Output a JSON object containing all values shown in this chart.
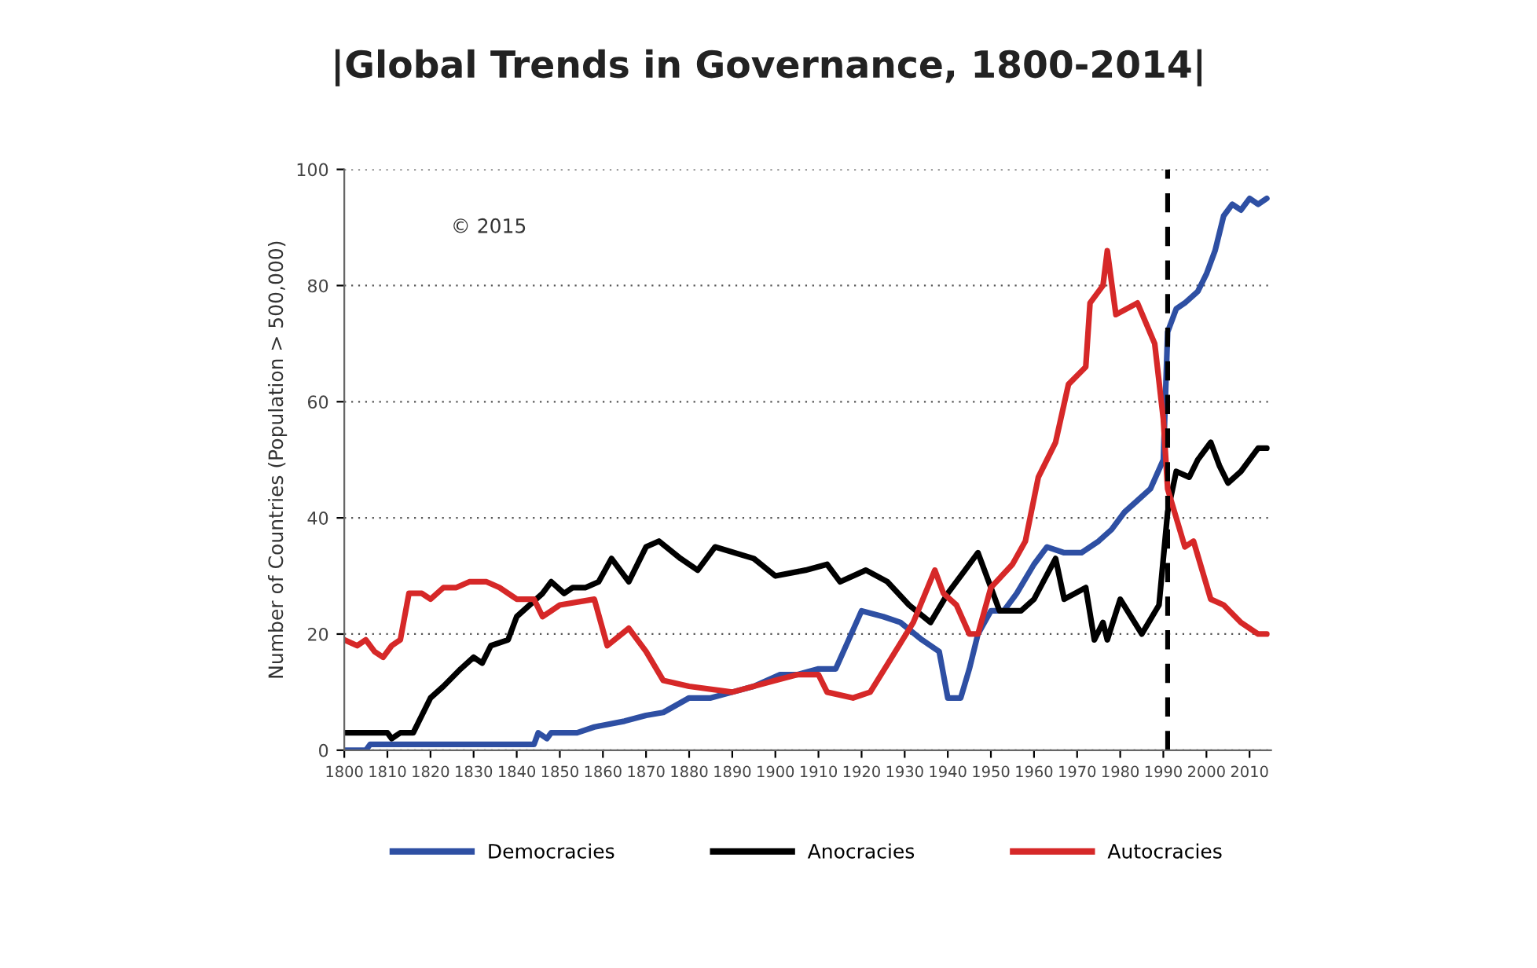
{
  "chart_data": {
    "type": "line",
    "title": "|Global Trends in Governance, 1800-2014|",
    "ylabel": "Number of Countries (Population > 500,000)",
    "annotations": [
      "© 2015"
    ],
    "xlim": [
      1800,
      2015
    ],
    "ylim": [
      0,
      100
    ],
    "xticks": [
      1800,
      1810,
      1820,
      1830,
      1840,
      1850,
      1860,
      1870,
      1880,
      1890,
      1900,
      1910,
      1920,
      1930,
      1940,
      1950,
      1960,
      1970,
      1980,
      1990,
      2000,
      2010
    ],
    "yticks": [
      0,
      20,
      40,
      60,
      80,
      100
    ],
    "grid": "y",
    "legend": "bottom",
    "line_style": "solid",
    "ref_lines": [
      {
        "axis": "x",
        "value": 1991,
        "color": "#000000",
        "line_style": "dashed"
      }
    ],
    "series": [
      {
        "name": "Democracies",
        "color": "#2e4fa3",
        "x": [
          1800,
          1805,
          1806,
          1844,
          1845,
          1847,
          1848,
          1854,
          1858,
          1865,
          1870,
          1874,
          1880,
          1885,
          1890,
          1895,
          1901,
          1905,
          1910,
          1914,
          1917,
          1920,
          1925,
          1929,
          1934,
          1938,
          1940,
          1943,
          1945,
          1947,
          1950,
          1953,
          1956,
          1960,
          1963,
          1967,
          1971,
          1975,
          1978,
          1981,
          1984,
          1987,
          1990,
          1991,
          1993,
          1995,
          1998,
          2000,
          2002,
          2004,
          2006,
          2008,
          2010,
          2012,
          2014
        ],
        "values": [
          0,
          0,
          1,
          1,
          3,
          2,
          3,
          3,
          4,
          5,
          6,
          6.5,
          9,
          9,
          10,
          11,
          13,
          13,
          14,
          14,
          19,
          24,
          23,
          22,
          19,
          17,
          9,
          9,
          14,
          20,
          24,
          24,
          27,
          32,
          35,
          34,
          34,
          36,
          38,
          41,
          43,
          45,
          50,
          72,
          76,
          77,
          79,
          82,
          86,
          92,
          94,
          93,
          95,
          94,
          95
        ]
      },
      {
        "name": "Anocracies",
        "color": "#000000",
        "x": [
          1800,
          1810,
          1811,
          1813,
          1816,
          1820,
          1823,
          1827,
          1830,
          1832,
          1834,
          1838,
          1840,
          1843,
          1846,
          1848,
          1851,
          1853,
          1856,
          1859,
          1862,
          1866,
          1870,
          1873,
          1878,
          1882,
          1886,
          1895,
          1900,
          1907,
          1912,
          1915,
          1921,
          1926,
          1931,
          1936,
          1940,
          1944,
          1947,
          1950,
          1952,
          1957,
          1960,
          1965,
          1967,
          1972,
          1974,
          1976,
          1977,
          1980,
          1985,
          1989,
          1990,
          1991,
          1993,
          1996,
          1998,
          2001,
          2003,
          2005,
          2008,
          2010,
          2012,
          2014
        ],
        "values": [
          3,
          3,
          2,
          3,
          3,
          9,
          11,
          14,
          16,
          15,
          18,
          19,
          23,
          25,
          27,
          29,
          27,
          28,
          28,
          29,
          33,
          29,
          35,
          36,
          33,
          31,
          35,
          33,
          30,
          31,
          32,
          29,
          31,
          29,
          25,
          22,
          27,
          31,
          34,
          28,
          24,
          24,
          26,
          33,
          26,
          28,
          19,
          22,
          19,
          26,
          20,
          25,
          33,
          41,
          48,
          47,
          50,
          53,
          49,
          46,
          48,
          50,
          52,
          52
        ]
      },
      {
        "name": "Autocracies",
        "color": "#d62828",
        "x": [
          1800,
          1803,
          1805,
          1807,
          1809,
          1811,
          1813,
          1815,
          1818,
          1820,
          1823,
          1826,
          1829,
          1833,
          1836,
          1840,
          1844,
          1846,
          1848,
          1850,
          1858,
          1861,
          1866,
          1870,
          1874,
          1880,
          1890,
          1900,
          1905,
          1910,
          1912,
          1918,
          1922,
          1927,
          1932,
          1937,
          1939,
          1942,
          1945,
          1947,
          1950,
          1955,
          1958,
          1961,
          1965,
          1968,
          1972,
          1973,
          1976,
          1977,
          1979,
          1984,
          1988,
          1990,
          1991,
          1995,
          1997,
          2001,
          2004,
          2008,
          2012,
          2014
        ],
        "values": [
          19,
          18,
          19,
          17,
          16,
          18,
          19,
          27,
          27,
          26,
          28,
          28,
          29,
          29,
          28,
          26,
          26,
          23,
          24,
          25,
          26,
          18,
          21,
          17,
          12,
          11,
          10,
          12,
          13,
          13,
          10,
          9,
          10,
          16,
          22,
          31,
          27,
          25,
          20,
          20,
          28,
          32,
          36,
          47,
          53,
          63,
          66,
          77,
          80,
          86,
          75,
          77,
          70,
          57,
          45,
          35,
          36,
          26,
          25,
          22,
          20,
          20
        ]
      }
    ]
  }
}
